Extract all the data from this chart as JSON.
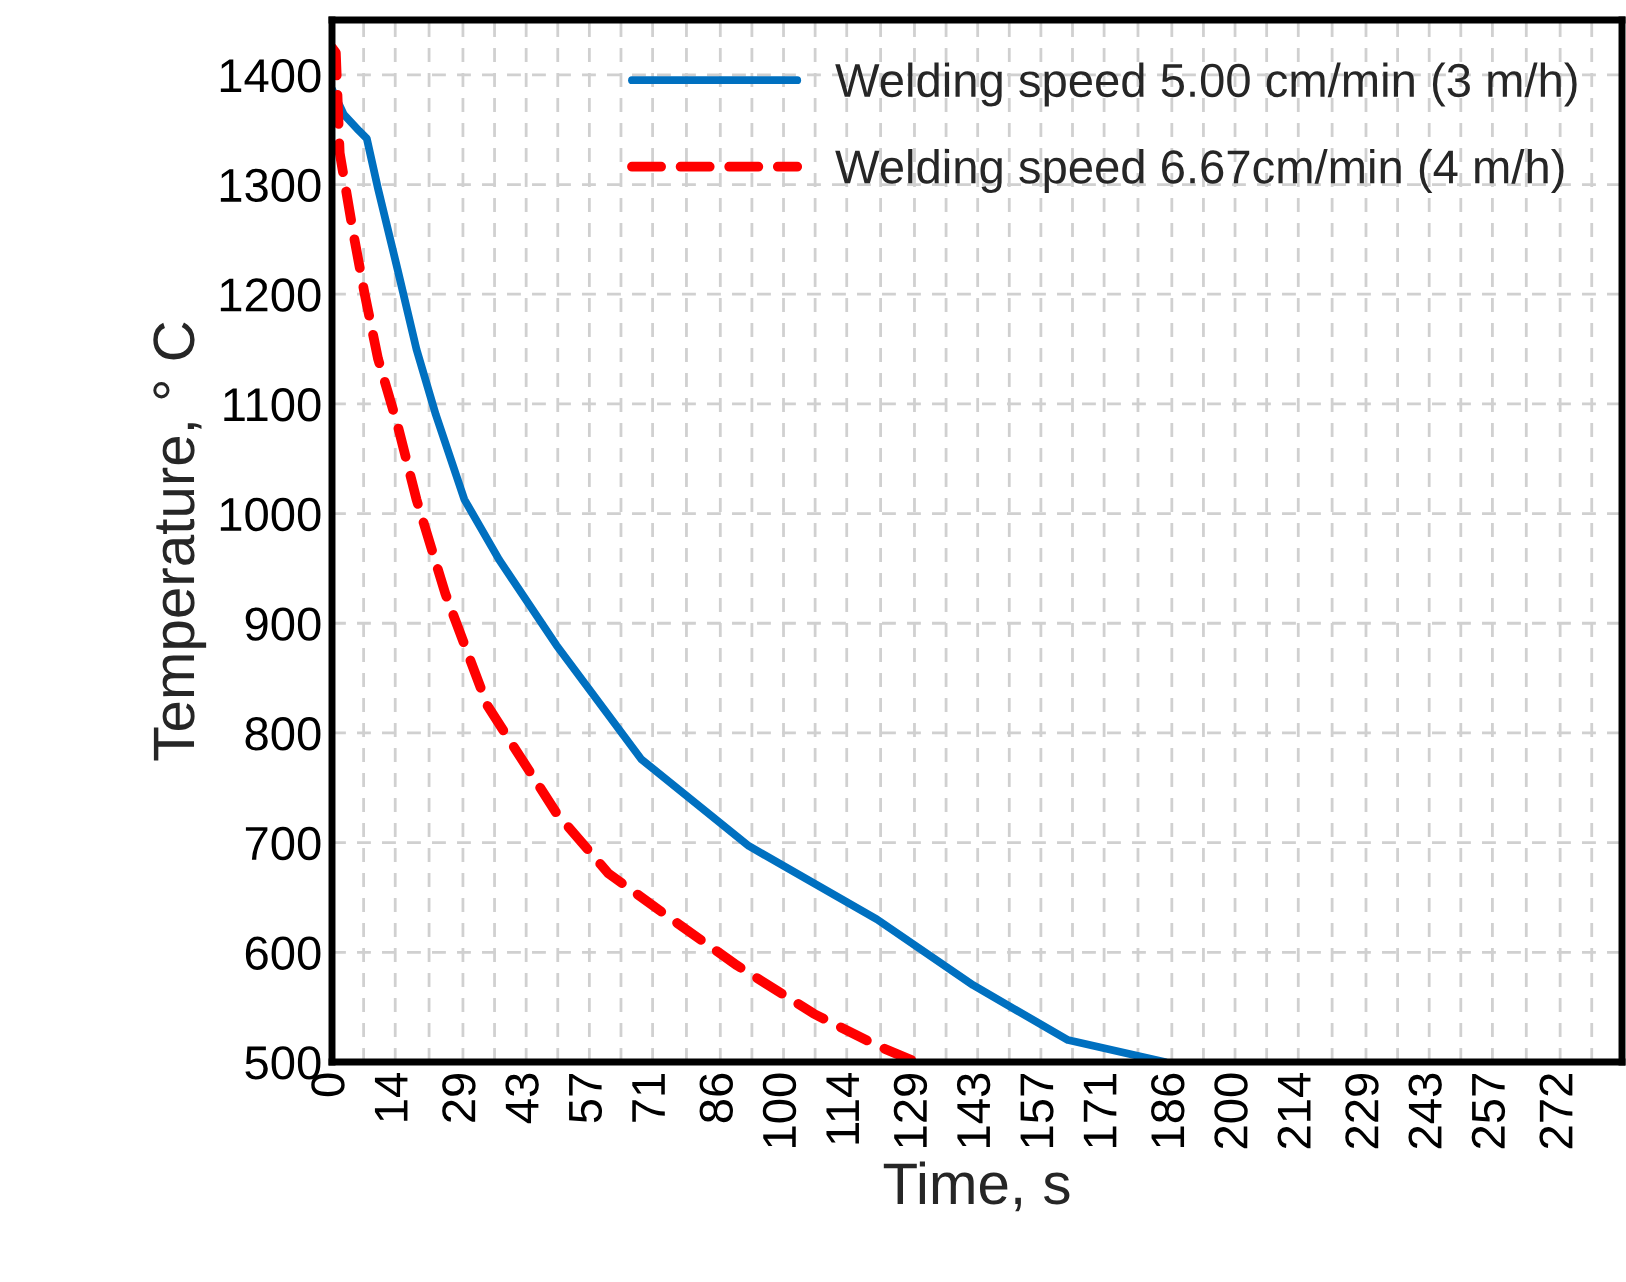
{
  "chart_data": {
    "type": "line",
    "xlabel": "Time, s",
    "ylabel": "Temperature, ° C",
    "xlim": [
      0,
      285.7
    ],
    "ylim": [
      500,
      1450
    ],
    "xticks": [
      0,
      14,
      29,
      43,
      57,
      71,
      86,
      100,
      114,
      129,
      143,
      157,
      171,
      186,
      200,
      214,
      229,
      243,
      257,
      272
    ],
    "yticks": [
      500,
      600,
      700,
      800,
      900,
      1000,
      1100,
      1200,
      1300,
      1400
    ],
    "grid": true,
    "legend": "top right",
    "series": [
      {
        "name": "Welding speed 5.00 cm/min (3 m/h)",
        "color": "#0070c0",
        "line_style": "solid",
        "x": [
          0,
          2.6,
          6,
          7.7,
          10.2,
          14.5,
          18.7,
          23,
          29.3,
          37,
          49.7,
          68.5,
          92.3,
          120.7,
          142,
          163,
          184.5
        ],
        "values": [
          1387,
          1364,
          1349,
          1342,
          1296,
          1223,
          1150,
          1090,
          1013,
          958,
          880,
          776,
          697,
          630,
          570,
          520,
          500
        ]
      },
      {
        "name": "Welding speed 6.67cm/min (4 m/h)",
        "color": "#ff0000",
        "line_style": "dashed",
        "x": [
          0,
          0.85,
          1.7,
          4.7,
          7.2,
          10.2,
          14.5,
          18.7,
          25.1,
          34.4,
          40,
          49.7,
          61.2,
          75.3,
          89.7,
          106.7,
          120.7,
          129.3
        ],
        "values": [
          1425,
          1420,
          1329,
          1256,
          1201,
          1141,
          1081,
          1013,
          927,
          825,
          789,
          727,
          672,
          630,
          588,
          544,
          515,
          500
        ]
      }
    ]
  }
}
